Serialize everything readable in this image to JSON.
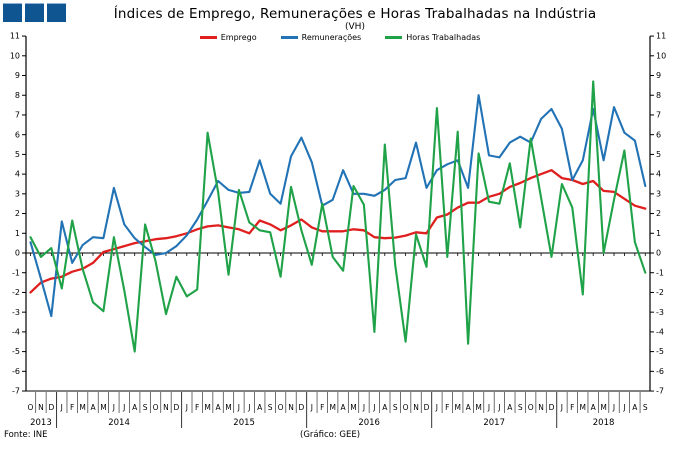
{
  "header": {
    "title": "Índices de Emprego,  Remunerações e Horas Trabalhadas na Indústria",
    "subtitle": "(VH)"
  },
  "logo": {
    "squares": 3,
    "color": "#0f5591"
  },
  "footer": {
    "source": "Fonte:  INE",
    "credit": "(Gráfico:  GEE)"
  },
  "chart_data": {
    "type": "line",
    "title": "Índices de Emprego,  Remunerações e Horas Trabalhadas na Indústria",
    "subtitle": "(VH)",
    "ylim": [
      -7,
      11
    ],
    "ytick_labels": [
      "11",
      "10",
      "9",
      "8",
      "7",
      "6",
      "5",
      "4",
      "3",
      "2",
      "1",
      "0",
      "-1",
      "-2",
      "-3",
      "-4",
      "-5",
      "-6",
      "-7"
    ],
    "yticks": [
      11,
      10,
      9,
      8,
      7,
      6,
      5,
      4,
      3,
      2,
      1,
      0,
      -1,
      -2,
      -3,
      -4,
      -5,
      -6,
      -7
    ],
    "grid": false,
    "legend_position": "top-center",
    "x_months": [
      "O",
      "N",
      "D",
      "J",
      "F",
      "M",
      "A",
      "M",
      "J",
      "J",
      "A",
      "S",
      "O",
      "N",
      "D",
      "J",
      "F",
      "M",
      "A",
      "M",
      "J",
      "J",
      "A",
      "S",
      "O",
      "N",
      "D",
      "J",
      "F",
      "M",
      "A",
      "M",
      "J",
      "J",
      "A",
      "S",
      "O",
      "N",
      "D",
      "J",
      "F",
      "M",
      "A",
      "M",
      "J",
      "J",
      "A",
      "S",
      "O",
      "N",
      "D",
      "J",
      "F",
      "M",
      "A",
      "M",
      "J",
      "J",
      "A",
      "S"
    ],
    "years": [
      {
        "label": "2013",
        "start": 0,
        "count": 3
      },
      {
        "label": "2014",
        "start": 3,
        "count": 12
      },
      {
        "label": "2015",
        "start": 15,
        "count": 12
      },
      {
        "label": "2016",
        "start": 27,
        "count": 12
      },
      {
        "label": "2017",
        "start": 39,
        "count": 12
      },
      {
        "label": "2018",
        "start": 51,
        "count": 9
      }
    ],
    "series": [
      {
        "name": "Emprego",
        "color": "#e01f1f",
        "values": [
          -2.0,
          -1.5,
          -1.3,
          -1.2,
          -0.95,
          -0.8,
          -0.5,
          0.05,
          0.2,
          0.35,
          0.5,
          0.6,
          0.7,
          0.75,
          0.85,
          1.0,
          1.2,
          1.35,
          1.4,
          1.3,
          1.2,
          1.0,
          1.65,
          1.45,
          1.15,
          1.4,
          1.7,
          1.3,
          1.1,
          1.1,
          1.1,
          1.2,
          1.15,
          0.8,
          0.75,
          0.78,
          0.88,
          1.05,
          1.0,
          1.8,
          1.95,
          2.3,
          2.55,
          2.55,
          2.85,
          3.0,
          3.35,
          3.55,
          3.8,
          4.0,
          4.2,
          3.8,
          3.7,
          3.5,
          3.65,
          3.15,
          3.1,
          2.75,
          2.4,
          2.25
        ]
      },
      {
        "name": "Remunerações",
        "color": "#2273b5",
        "values": [
          0.55,
          -1.3,
          -3.2,
          1.6,
          -0.5,
          0.4,
          0.8,
          0.75,
          3.3,
          1.45,
          0.75,
          0.3,
          -0.1,
          0.0,
          0.35,
          0.9,
          1.7,
          2.65,
          3.65,
          3.2,
          3.05,
          3.1,
          4.7,
          3.0,
          2.5,
          4.9,
          5.85,
          4.6,
          2.4,
          2.7,
          4.2,
          3.0,
          3.0,
          2.9,
          3.2,
          3.7,
          3.8,
          5.6,
          3.3,
          4.2,
          4.5,
          4.7,
          3.3,
          8.0,
          4.95,
          4.85,
          5.6,
          5.9,
          5.6,
          6.8,
          7.3,
          6.3,
          3.7,
          4.7,
          7.3,
          4.7,
          7.4,
          6.1,
          5.7,
          3.4
        ]
      },
      {
        "name": "Horas Trabalhadas",
        "color": "#1fa248",
        "values": [
          0.8,
          -0.2,
          0.25,
          -1.8,
          1.65,
          -0.8,
          -2.5,
          -2.95,
          0.8,
          -1.9,
          -5.0,
          1.45,
          -0.4,
          -3.1,
          -1.2,
          -2.2,
          -1.85,
          6.1,
          3.1,
          -1.1,
          3.2,
          1.55,
          1.15,
          1.05,
          -1.2,
          3.35,
          1.15,
          -0.6,
          2.5,
          -0.2,
          -0.9,
          3.4,
          2.45,
          -4.0,
          5.5,
          -0.6,
          -4.5,
          0.95,
          -0.7,
          7.35,
          -0.2,
          6.15,
          -4.6,
          5.05,
          2.6,
          2.5,
          4.55,
          1.3,
          5.8,
          2.8,
          -0.2,
          3.5,
          2.3,
          -2.1,
          8.7,
          0.0,
          2.7,
          5.2,
          0.55,
          -1.0
        ]
      }
    ]
  }
}
